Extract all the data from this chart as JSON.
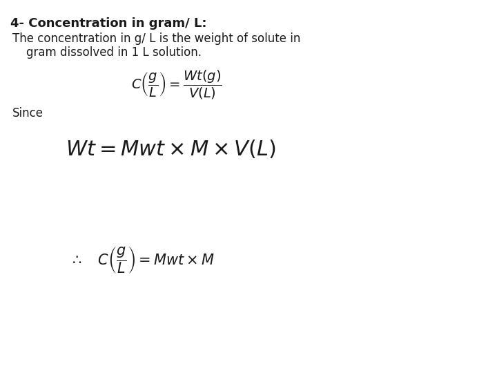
{
  "title": "4- Concentration in gram/ L:",
  "line1": "The concentration in g/ L is the weight of solute in",
  "line2": "gram dissolved in 1 L solution.",
  "eq1": "$C\\left(\\dfrac{g}{L}\\right) = \\dfrac{Wt(g)}{V(L)}$",
  "since": "Since",
  "eq2": "$Wt = Mwt \\times M \\times V(L)$",
  "eq3": "$\\therefore \\quad C\\left(\\dfrac{g}{L}\\right) = Mwt \\times M$",
  "bg_color": "#ffffff",
  "text_color": "#1a1a1a",
  "title_fontsize": 13,
  "body_fontsize": 12,
  "eq1_fontsize": 14,
  "eq2_fontsize": 22,
  "eq3_fontsize": 15
}
